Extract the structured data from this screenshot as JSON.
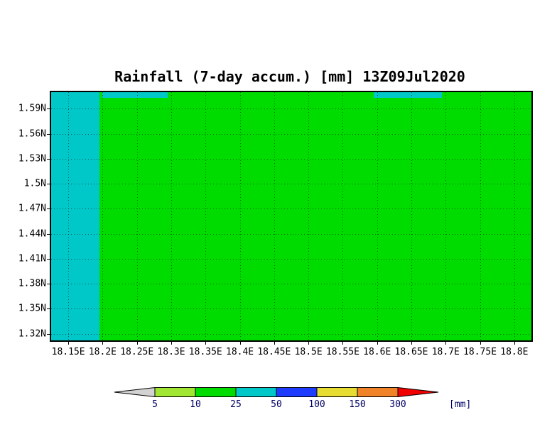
{
  "chart_data": {
    "type": "heatmap",
    "title": "Rainfall (7-day accum.) [mm] 13Z09Jul2020",
    "xlabel": "",
    "ylabel": "",
    "x_range": [
      18.125,
      18.825
    ],
    "y_range": [
      1.312,
      1.61
    ],
    "grid": "dotted",
    "x_ticks": [
      {
        "value": 18.15,
        "label": "18.15E"
      },
      {
        "value": 18.2,
        "label": "18.2E"
      },
      {
        "value": 18.25,
        "label": "18.25E"
      },
      {
        "value": 18.3,
        "label": "18.3E"
      },
      {
        "value": 18.35,
        "label": "18.35E"
      },
      {
        "value": 18.4,
        "label": "18.4E"
      },
      {
        "value": 18.45,
        "label": "18.45E"
      },
      {
        "value": 18.5,
        "label": "18.5E"
      },
      {
        "value": 18.55,
        "label": "18.55E"
      },
      {
        "value": 18.6,
        "label": "18.6E"
      },
      {
        "value": 18.65,
        "label": "18.65E"
      },
      {
        "value": 18.7,
        "label": "18.7E"
      },
      {
        "value": 18.75,
        "label": "18.75E"
      },
      {
        "value": 18.8,
        "label": "18.8E"
      }
    ],
    "y_ticks": [
      {
        "value": 1.59,
        "label": "1.59N"
      },
      {
        "value": 1.56,
        "label": "1.56N"
      },
      {
        "value": 1.53,
        "label": "1.53N"
      },
      {
        "value": 1.5,
        "label": "1.5N"
      },
      {
        "value": 1.47,
        "label": "1.47N"
      },
      {
        "value": 1.44,
        "label": "1.44N"
      },
      {
        "value": 1.41,
        "label": "1.41N"
      },
      {
        "value": 1.38,
        "label": "1.38N"
      },
      {
        "value": 1.35,
        "label": "1.35N"
      },
      {
        "value": 1.32,
        "label": "1.32N"
      }
    ],
    "regions": [
      {
        "name": "base-field",
        "value_mm": "10-25",
        "color": "#00dc00",
        "x": [
          18.125,
          18.825
        ],
        "y": [
          1.312,
          1.61
        ]
      },
      {
        "name": "west-band",
        "value_mm": "25-50",
        "color": "#00c8c8",
        "x": [
          18.125,
          18.195
        ],
        "y": [
          1.312,
          1.61
        ]
      },
      {
        "name": "north-band-west",
        "value_mm": "25-50",
        "color": "#00c8c8",
        "x": [
          18.2,
          18.295
        ],
        "y": [
          1.603,
          1.61
        ]
      },
      {
        "name": "north-band-east",
        "value_mm": "25-50",
        "color": "#00c8c8",
        "x": [
          18.595,
          18.695
        ],
        "y": [
          1.603,
          1.61
        ]
      }
    ],
    "colorbar": {
      "boundary_labels": [
        "5",
        "10",
        "25",
        "50",
        "100",
        "150",
        "300"
      ],
      "segment_colors": [
        "#a0e632",
        "#00dc00",
        "#00c8c8",
        "#1e3cff",
        "#e6dc32",
        "#f08228"
      ],
      "arrow_left_color": "#d2d2d2",
      "arrow_right_color": "#f00000",
      "unit": "[mm]",
      "label_color": "#000066"
    }
  }
}
